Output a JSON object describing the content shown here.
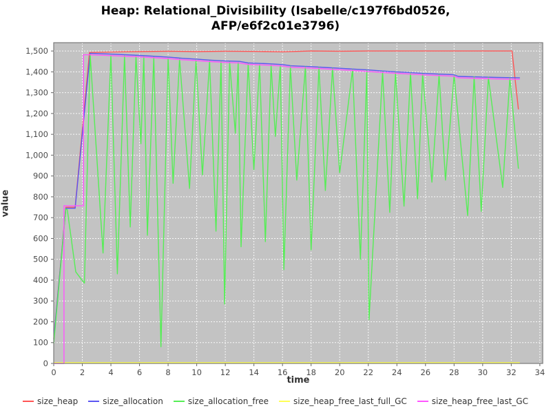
{
  "title": {
    "line1": "Heap: Relational_Divisibility (Isabelle/c197f6bd0526,",
    "line2": "AFP/e6f2c01e3796)"
  },
  "chart_data": {
    "type": "line",
    "title": "Heap: Relational_Divisibility (Isabelle/c197f6bd0526, AFP/e6f2c01e3796)",
    "xlabel": "time",
    "ylabel": "value",
    "grid": true,
    "legend_position": "bottom",
    "plot_bg": "#c3c3c3",
    "grid_color": "rgba(255,255,255,0.9)",
    "border_color": "#7a7a7a",
    "tick_color": "#666666",
    "tick_label_color": "#4a4a4a",
    "xlim": [
      0,
      34.2
    ],
    "ylim": [
      0,
      1540
    ],
    "x_ticks": {
      "min": 0,
      "max": 34,
      "step": 2
    },
    "y_ticks": {
      "min": 0,
      "max": 1500,
      "step": 100
    },
    "series": [
      {
        "name": "size_heap",
        "color": "#ff5454",
        "points": [
          [
            0,
            120
          ],
          [
            0.85,
            750
          ],
          [
            1.5,
            750
          ],
          [
            2.5,
            1493
          ],
          [
            4,
            1495
          ],
          [
            6,
            1497
          ],
          [
            8,
            1499
          ],
          [
            10,
            1497
          ],
          [
            12,
            1499
          ],
          [
            14,
            1498
          ],
          [
            16,
            1496
          ],
          [
            18,
            1500
          ],
          [
            20,
            1499
          ],
          [
            22,
            1500
          ],
          [
            24,
            1500
          ],
          [
            26,
            1500
          ],
          [
            28,
            1500
          ],
          [
            30,
            1500
          ],
          [
            32.05,
            1500
          ],
          [
            32.5,
            1220
          ]
        ]
      },
      {
        "name": "size_allocation",
        "color": "#5a55f2",
        "points": [
          [
            0,
            115
          ],
          [
            0.85,
            745
          ],
          [
            1.5,
            745
          ],
          [
            2.55,
            1489
          ],
          [
            4,
            1485
          ],
          [
            6,
            1479
          ],
          [
            8,
            1471
          ],
          [
            9,
            1465
          ],
          [
            10,
            1461
          ],
          [
            11,
            1456
          ],
          [
            12,
            1452
          ],
          [
            13,
            1450
          ],
          [
            13.6,
            1443
          ],
          [
            15,
            1439
          ],
          [
            16,
            1435
          ],
          [
            16.6,
            1429
          ],
          [
            18,
            1425
          ],
          [
            19,
            1421
          ],
          [
            20,
            1417
          ],
          [
            21,
            1413
          ],
          [
            22,
            1409
          ],
          [
            23,
            1404
          ],
          [
            24,
            1400
          ],
          [
            25,
            1396
          ],
          [
            26,
            1392
          ],
          [
            27,
            1389
          ],
          [
            28,
            1386
          ],
          [
            28.3,
            1378
          ],
          [
            30,
            1375
          ],
          [
            31,
            1373
          ],
          [
            32.6,
            1371
          ]
        ]
      },
      {
        "name": "size_allocation_free",
        "color": "#55ee55",
        "points": [
          [
            0,
            95
          ],
          [
            0.85,
            742
          ],
          [
            0.95,
            738
          ],
          [
            1.54,
            440
          ],
          [
            2.0,
            398
          ],
          [
            2.15,
            386
          ],
          [
            2.55,
            1483
          ],
          [
            3.45,
            530
          ],
          [
            4.0,
            1480
          ],
          [
            4.45,
            430
          ],
          [
            4.95,
            1478
          ],
          [
            5.35,
            655
          ],
          [
            5.75,
            1476
          ],
          [
            6.1,
            1055
          ],
          [
            6.3,
            1474
          ],
          [
            6.55,
            615
          ],
          [
            7.0,
            1471
          ],
          [
            7.5,
            80
          ],
          [
            8.0,
            1467
          ],
          [
            8.35,
            865
          ],
          [
            8.8,
            1462
          ],
          [
            9.5,
            840
          ],
          [
            9.95,
            1458
          ],
          [
            10.4,
            905
          ],
          [
            10.9,
            1453
          ],
          [
            11.35,
            635
          ],
          [
            11.7,
            1450
          ],
          [
            11.95,
            285
          ],
          [
            12.3,
            1447
          ],
          [
            12.7,
            1105
          ],
          [
            12.9,
            1445
          ],
          [
            13.1,
            560
          ],
          [
            13.6,
            1439
          ],
          [
            14.0,
            930
          ],
          [
            14.4,
            1436
          ],
          [
            14.8,
            585
          ],
          [
            15.2,
            1433
          ],
          [
            15.5,
            1090
          ],
          [
            15.85,
            1430
          ],
          [
            16.1,
            450
          ],
          [
            16.55,
            1427
          ],
          [
            17.0,
            880
          ],
          [
            17.6,
            1424
          ],
          [
            18.0,
            545
          ],
          [
            18.55,
            1421
          ],
          [
            19.0,
            830
          ],
          [
            19.5,
            1417
          ],
          [
            20.0,
            915
          ],
          [
            20.9,
            1411
          ],
          [
            21.45,
            500
          ],
          [
            21.9,
            1407
          ],
          [
            22.05,
            210
          ],
          [
            23.0,
            1401
          ],
          [
            23.5,
            725
          ],
          [
            23.9,
            1398
          ],
          [
            24.5,
            755
          ],
          [
            24.95,
            1394
          ],
          [
            25.45,
            790
          ],
          [
            25.8,
            1390
          ],
          [
            26.45,
            870
          ],
          [
            26.95,
            1387
          ],
          [
            27.4,
            880
          ],
          [
            28.0,
            1383
          ],
          [
            28.95,
            710
          ],
          [
            29.4,
            1376
          ],
          [
            29.9,
            730
          ],
          [
            30.4,
            1373
          ],
          [
            31.4,
            845
          ],
          [
            31.9,
            1370
          ],
          [
            32.5,
            935
          ]
        ]
      },
      {
        "name": "size_heap_free_last_full_GC",
        "color": "#ffff55",
        "points": [
          [
            0,
            4
          ],
          [
            32.6,
            4
          ]
        ]
      },
      {
        "name": "size_heap_free_last_GC",
        "color": "#ff55ff",
        "points": [
          [
            0,
            0
          ],
          [
            0.72,
            0
          ],
          [
            0.72,
            757
          ],
          [
            2.08,
            757
          ],
          [
            2.08,
            1482
          ],
          [
            2.55,
            1482
          ],
          [
            4,
            1478
          ],
          [
            6,
            1472
          ],
          [
            8,
            1464
          ],
          [
            9,
            1458
          ],
          [
            10,
            1454
          ],
          [
            11,
            1449
          ],
          [
            12,
            1445
          ],
          [
            13,
            1443
          ],
          [
            13.6,
            1436
          ],
          [
            15,
            1432
          ],
          [
            16,
            1428
          ],
          [
            16.6,
            1422
          ],
          [
            18,
            1418
          ],
          [
            19,
            1414
          ],
          [
            20,
            1410
          ],
          [
            21,
            1406
          ],
          [
            22,
            1402
          ],
          [
            23,
            1397
          ],
          [
            24,
            1393
          ],
          [
            25,
            1389
          ],
          [
            26,
            1385
          ],
          [
            27,
            1382
          ],
          [
            28,
            1379
          ],
          [
            28.3,
            1371
          ],
          [
            30,
            1368
          ],
          [
            31,
            1366
          ],
          [
            32.6,
            1364
          ]
        ]
      }
    ]
  }
}
